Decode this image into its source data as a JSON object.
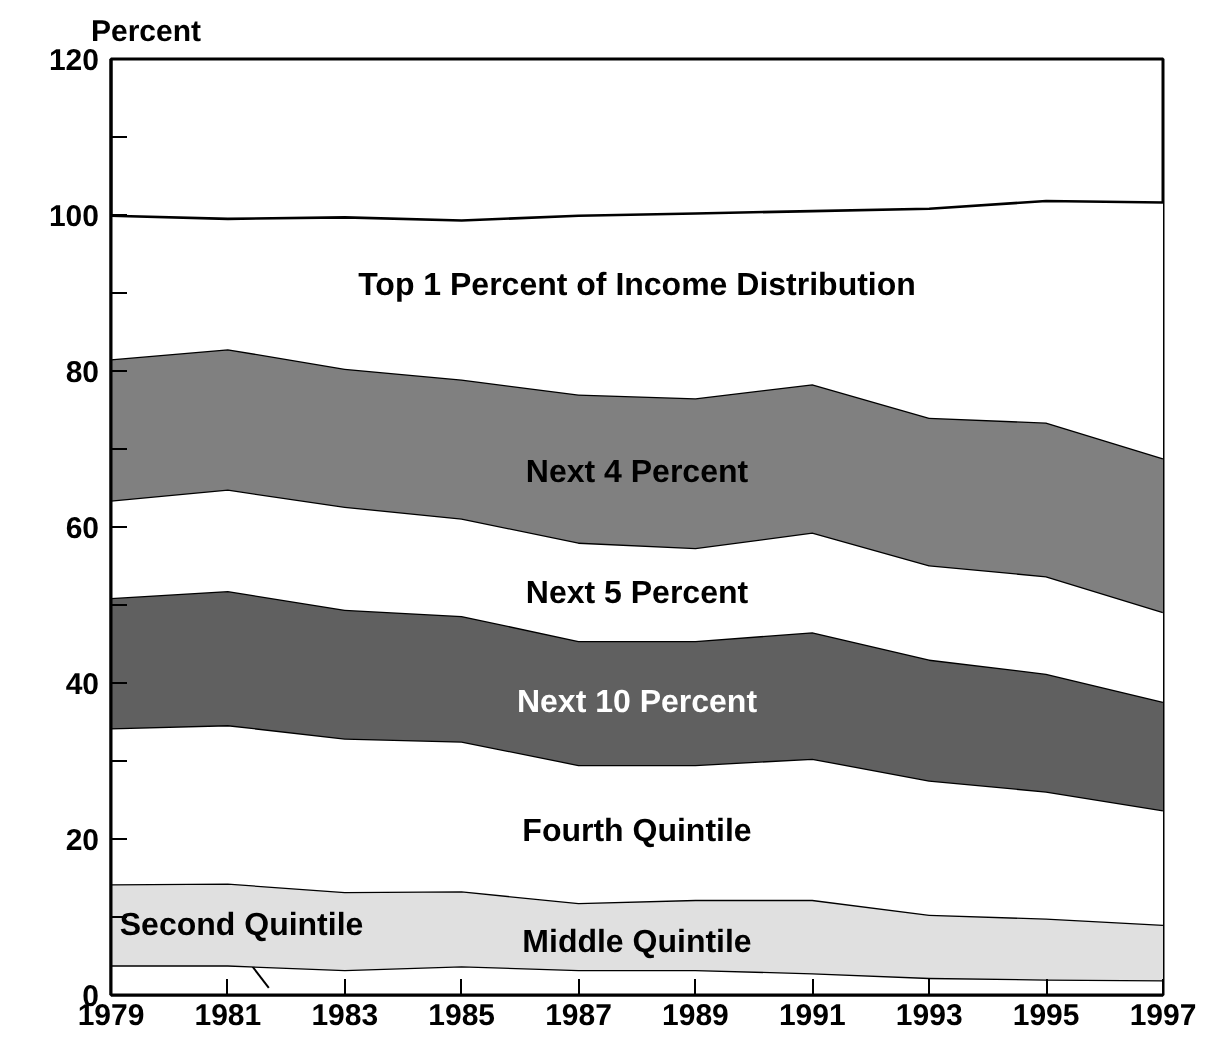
{
  "chart_data": {
    "type": "area",
    "stacked": true,
    "ylabel": "Percent",
    "x": [
      1979,
      1981,
      1983,
      1985,
      1987,
      1989,
      1991,
      1993,
      1995,
      1997
    ],
    "series": [
      {
        "name": "Second Quintile",
        "color": "#ffffff",
        "values": [
          3.8,
          3.8,
          3.2,
          3.7,
          3.2,
          3.2,
          2.8,
          2.2,
          2.0,
          1.9
        ]
      },
      {
        "name": "Middle Quintile",
        "color": "#e0e0e0",
        "values": [
          10.4,
          10.5,
          10.0,
          9.6,
          8.6,
          9.0,
          9.4,
          8.1,
          7.8,
          7.1
        ]
      },
      {
        "name": "Fourth Quintile",
        "color": "#ffffff",
        "values": [
          20.0,
          20.3,
          19.7,
          19.2,
          17.7,
          17.3,
          18.1,
          17.2,
          16.3,
          14.7
        ]
      },
      {
        "name": "Next 10 Percent",
        "color": "#606060",
        "values": [
          16.7,
          17.2,
          16.5,
          16.1,
          15.9,
          15.9,
          16.2,
          15.5,
          15.1,
          13.9
        ]
      },
      {
        "name": "Next 5 Percent",
        "color": "#ffffff",
        "values": [
          12.5,
          13.0,
          13.2,
          12.5,
          12.6,
          11.9,
          12.8,
          12.1,
          12.5,
          11.5
        ]
      },
      {
        "name": "Next 4 Percent",
        "color": "#808080",
        "values": [
          18.1,
          18.0,
          17.7,
          17.8,
          19.0,
          19.2,
          19.0,
          18.9,
          19.7,
          19.7
        ]
      },
      {
        "name": "Top 1 Percent of Income Distribution",
        "color": "#ffffff",
        "values": [
          18.4,
          16.7,
          19.4,
          20.4,
          22.9,
          23.7,
          22.2,
          26.8,
          28.4,
          32.8
        ]
      }
    ],
    "xlim": [
      1979,
      1997
    ],
    "xticks": [
      1979,
      1981,
      1983,
      1985,
      1987,
      1989,
      1991,
      1993,
      1995,
      1997
    ],
    "ylim": [
      0,
      120
    ],
    "yticks": [
      0,
      {
        "value": 10,
        "label": null
      },
      20,
      {
        "value": 30,
        "label": null
      },
      40,
      {
        "value": 50,
        "label": null
      },
      60,
      {
        "value": 70,
        "label": null
      },
      80,
      {
        "value": 90,
        "label": null
      },
      100,
      {
        "value": 110,
        "label": null
      },
      120
    ],
    "tick_labels": true
  }
}
